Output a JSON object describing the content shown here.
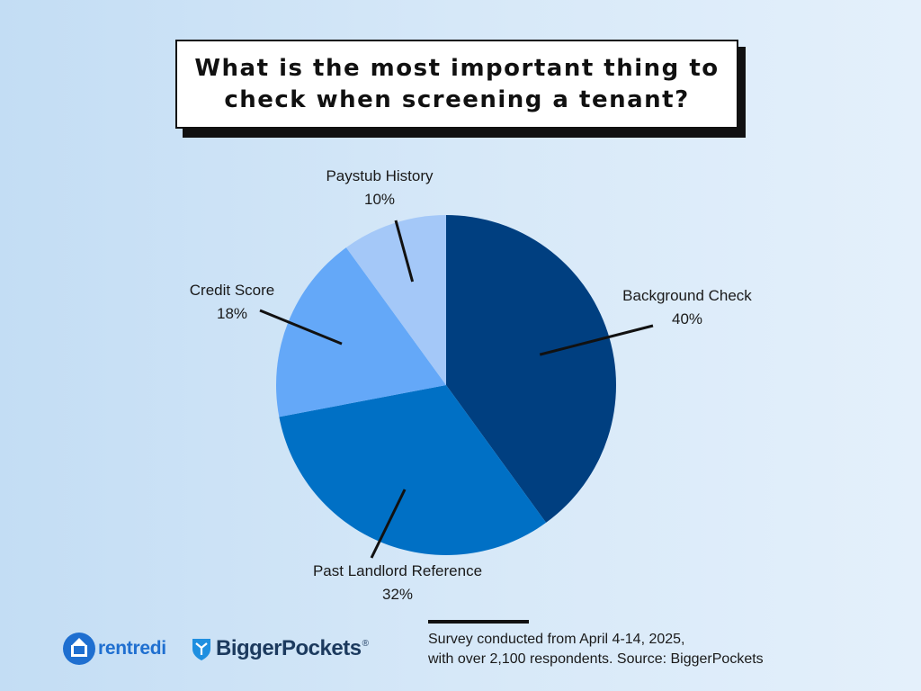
{
  "footer": {
    "note_line1": "Survey conducted from April 4-14, 2025,",
    "note_line2": "with over 2,100 respondents. Source: BiggerPockets"
  },
  "logos": {
    "rentredi": {
      "text": "rentredi",
      "icon": "house-circle-icon",
      "color": "#1f6fd0"
    },
    "biggerpockets": {
      "text": "BiggerPockets",
      "registered": "®",
      "icon": "shield-pocket-icon",
      "color": "#1c3a5e"
    }
  },
  "chart_data": {
    "type": "pie",
    "title": "What is the most important thing to check when screening a tenant?",
    "legend": "none",
    "slices": [
      {
        "label": "Background Check",
        "value": 40,
        "value_label": "40%",
        "color": "#003f80"
      },
      {
        "label": "Past Landlord Reference",
        "value": 32,
        "value_label": "32%",
        "color": "#0070c5"
      },
      {
        "label": "Credit Score",
        "value": 18,
        "value_label": "18%",
        "color": "#64a8f8"
      },
      {
        "label": "Paystub History",
        "value": 10,
        "value_label": "10%",
        "color": "#a4c8f8"
      }
    ]
  }
}
